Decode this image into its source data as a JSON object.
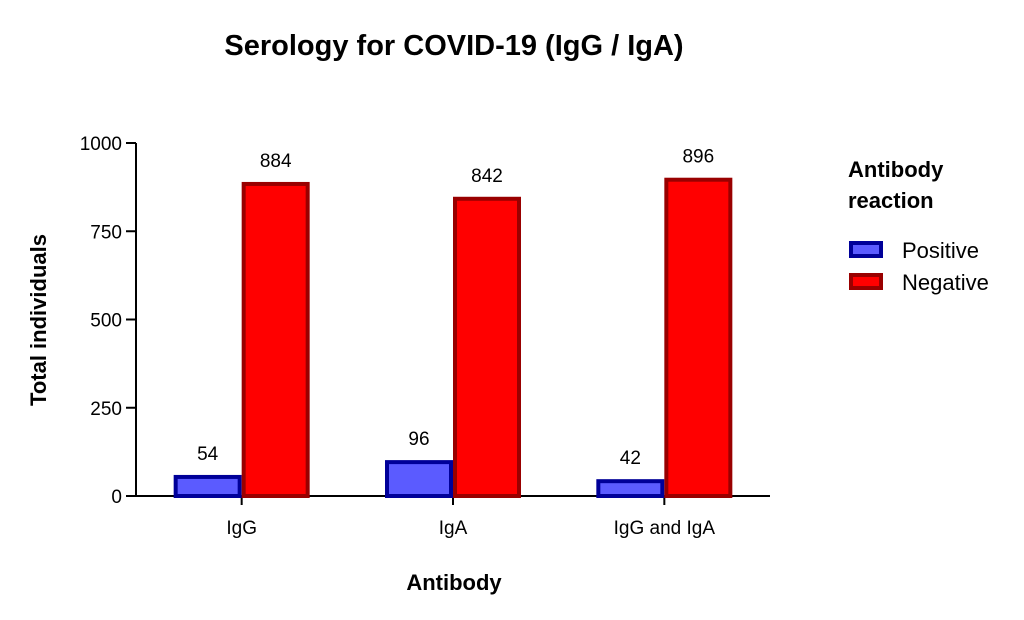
{
  "chart_data": {
    "type": "bar",
    "title": "Serology for COVID-19 (IgG / IgA)",
    "xlabel": "Antibody",
    "ylabel": "Total individuals",
    "ylim": [
      0,
      1000
    ],
    "yticks": [
      0,
      250,
      500,
      750,
      1000
    ],
    "categories": [
      "IgG",
      "IgA",
      "IgG and IgA"
    ],
    "series": [
      {
        "name": "Positive",
        "values": [
          54,
          96,
          42
        ],
        "fill": "#5b5bff",
        "stroke": "#000099"
      },
      {
        "name": "Negative",
        "values": [
          884,
          842,
          896
        ],
        "fill": "#ff0000",
        "stroke": "#990000"
      }
    ],
    "legend": {
      "title_line1": "Antibody",
      "title_line2": "reaction",
      "position": "right"
    },
    "grid": false
  }
}
